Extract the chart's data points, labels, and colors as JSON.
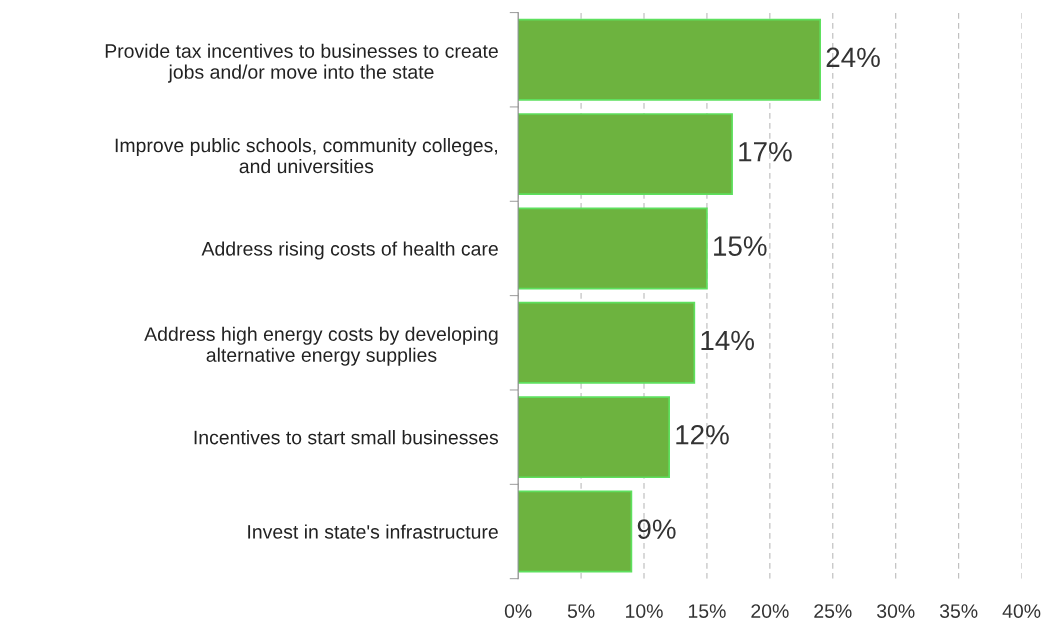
{
  "chart_data": {
    "type": "bar",
    "orientation": "horizontal",
    "categories": [
      "Provide tax incentives to businesses to create\njobs and/or move into the state",
      "Improve public schools, community colleges,\nand universities",
      "Address rising costs of health care",
      "Address high energy costs by developing\nalternative energy supplies",
      "Incentives to start small businesses",
      "Invest in state's infrastructure"
    ],
    "values": [
      24,
      17,
      15,
      14,
      12,
      9
    ],
    "value_labels": [
      "24%",
      "17%",
      "15%",
      "14%",
      "12%",
      "9%"
    ],
    "color": "#6db33f",
    "xlim": [
      0,
      40
    ],
    "xticks": [
      {
        "value": 0,
        "label": "0%"
      },
      {
        "value": 5,
        "label": "5%"
      },
      {
        "value": 10,
        "label": "10%"
      },
      {
        "value": 15,
        "label": "15%"
      },
      {
        "value": 20,
        "label": "20%"
      },
      {
        "value": 25,
        "label": "25%"
      },
      {
        "value": 30,
        "label": "30%"
      },
      {
        "value": 35,
        "label": "35%"
      },
      {
        "value": 40,
        "label": "40%"
      }
    ],
    "grid": "x",
    "legend": false
  }
}
